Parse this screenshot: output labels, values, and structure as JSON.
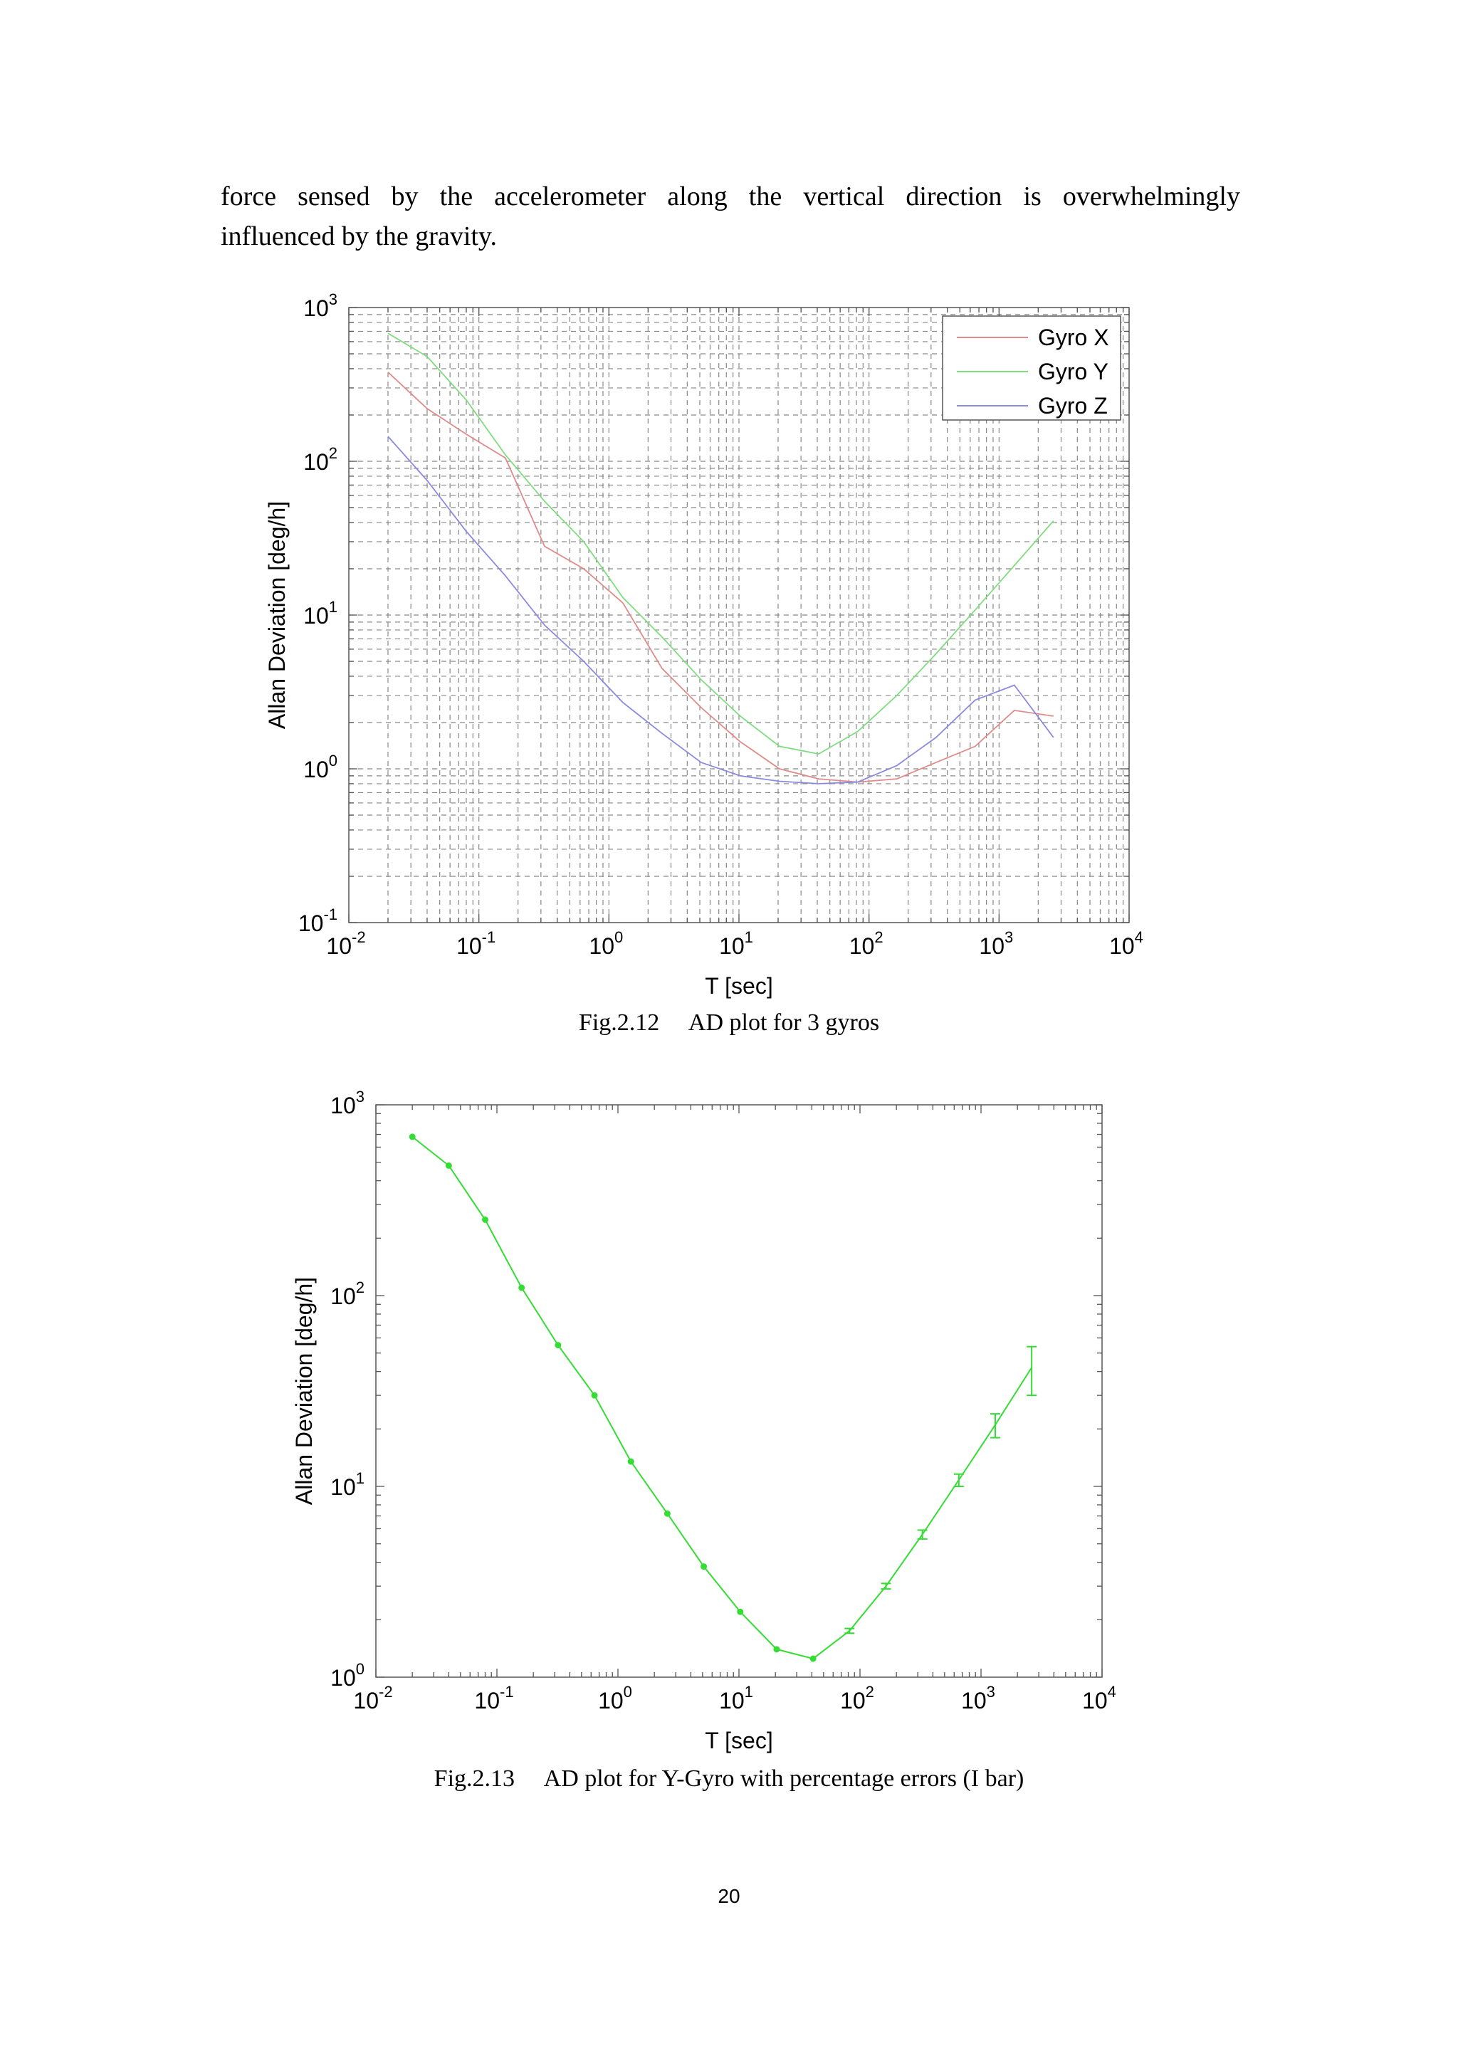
{
  "paragraph": {
    "line1": "force sensed by the accelerometer along the vertical direction is overwhelmingly",
    "line2": "influenced by the gravity."
  },
  "figures": [
    {
      "caption": "Fig.2.12     AD plot for 3 gyros",
      "chart_data": {
        "type": "line",
        "xscale": "log",
        "yscale": "log",
        "xlabel": "T [sec]",
        "ylabel": "Allan Deviation [deg/h]",
        "xlim": [
          0.01,
          10000
        ],
        "ylim": [
          0.1,
          1000
        ],
        "grid": true,
        "legend_position": "top-right",
        "x_tick_exponents": [
          "-2",
          "-1",
          "0",
          "1",
          "2",
          "3",
          "4"
        ],
        "y_tick_exponents": [
          "-1",
          "0",
          "1",
          "2",
          "3"
        ],
        "tick_base": "10",
        "series": [
          {
            "name": "Gyro X",
            "color": "#e08a8a",
            "points": [
              [
                0.02,
                380
              ],
              [
                0.04,
                220
              ],
              [
                0.08,
                150
              ],
              [
                0.16,
                105
              ],
              [
                0.32,
                28
              ],
              [
                0.64,
                20
              ],
              [
                1.28,
                12
              ],
              [
                2.56,
                4.5
              ],
              [
                5.12,
                2.5
              ],
              [
                10.24,
                1.5
              ],
              [
                20.48,
                1.0
              ],
              [
                40.96,
                0.86
              ],
              [
                81.92,
                0.82
              ],
              [
                163.84,
                0.86
              ],
              [
                327.68,
                1.1
              ],
              [
                655.36,
                1.4
              ],
              [
                1310.72,
                2.4
              ],
              [
                2621.44,
                2.2
              ]
            ]
          },
          {
            "name": "Gyro Y",
            "color": "#7fdc7f",
            "points": [
              [
                0.02,
                680
              ],
              [
                0.04,
                480
              ],
              [
                0.08,
                250
              ],
              [
                0.16,
                110
              ],
              [
                0.32,
                55
              ],
              [
                0.64,
                30
              ],
              [
                1.28,
                13
              ],
              [
                2.56,
                7.2
              ],
              [
                5.12,
                3.8
              ],
              [
                10.24,
                2.2
              ],
              [
                20.48,
                1.4
              ],
              [
                40.96,
                1.25
              ],
              [
                81.92,
                1.75
              ],
              [
                163.84,
                3.0
              ],
              [
                327.68,
                5.6
              ],
              [
                655.36,
                10.8
              ],
              [
                1310.72,
                21
              ],
              [
                2621.44,
                41
              ]
            ]
          },
          {
            "name": "Gyro Z",
            "color": "#8a8ae0",
            "points": [
              [
                0.02,
                145
              ],
              [
                0.04,
                75
              ],
              [
                0.08,
                35
              ],
              [
                0.16,
                18
              ],
              [
                0.32,
                8.6
              ],
              [
                0.64,
                5.0
              ],
              [
                1.28,
                2.7
              ],
              [
                2.56,
                1.7
              ],
              [
                5.12,
                1.1
              ],
              [
                10.24,
                0.9
              ],
              [
                20.48,
                0.83
              ],
              [
                40.96,
                0.8
              ],
              [
                81.92,
                0.82
              ],
              [
                163.84,
                1.05
              ],
              [
                327.68,
                1.6
              ],
              [
                655.36,
                2.8
              ],
              [
                1310.72,
                3.5
              ],
              [
                2621.44,
                1.6
              ]
            ]
          }
        ]
      }
    },
    {
      "caption": "Fig.2.13     AD plot for Y-Gyro with percentage errors (I bar)",
      "chart_data": {
        "type": "line",
        "xscale": "log",
        "yscale": "log",
        "xlabel": "T [sec]",
        "ylabel": "Allan Deviation [deg/h]",
        "xlim": [
          0.01,
          10000
        ],
        "ylim": [
          1,
          1000
        ],
        "grid": false,
        "x_tick_exponents": [
          "-2",
          "-1",
          "0",
          "1",
          "2",
          "3",
          "4"
        ],
        "y_tick_exponents": [
          "0",
          "1",
          "2",
          "3"
        ],
        "tick_base": "10",
        "series": [
          {
            "name": "",
            "color": "#33dd33",
            "points": [
              [
                0.02,
                680
              ],
              [
                0.04,
                480
              ],
              [
                0.08,
                250
              ],
              [
                0.16,
                110
              ],
              [
                0.32,
                55
              ],
              [
                0.64,
                30
              ],
              [
                1.28,
                13.5
              ],
              [
                2.56,
                7.2
              ],
              [
                5.12,
                3.8
              ],
              [
                10.24,
                2.2
              ],
              [
                20.48,
                1.4
              ],
              [
                40.96,
                1.25
              ],
              [
                81.92,
                1.75
              ],
              [
                163.84,
                3.0
              ],
              [
                327.68,
                5.6
              ],
              [
                655.36,
                10.8
              ],
              [
                1310.72,
                21
              ],
              [
                2621.44,
                42
              ]
            ],
            "error_bars": [
              [
                0.02,
                0
              ],
              [
                0.04,
                0
              ],
              [
                0.08,
                0
              ],
              [
                0.16,
                0
              ],
              [
                0.32,
                0
              ],
              [
                0.64,
                0
              ],
              [
                1.28,
                0
              ],
              [
                2.56,
                0
              ],
              [
                5.12,
                0
              ],
              [
                10.24,
                0
              ],
              [
                20.48,
                0
              ],
              [
                40.96,
                0
              ],
              [
                81.92,
                0.05
              ],
              [
                163.84,
                0.1
              ],
              [
                327.68,
                0.3
              ],
              [
                655.36,
                0.8
              ],
              [
                1310.72,
                3
              ],
              [
                2621.44,
                12
              ]
            ]
          }
        ]
      }
    }
  ],
  "page_number": "20"
}
